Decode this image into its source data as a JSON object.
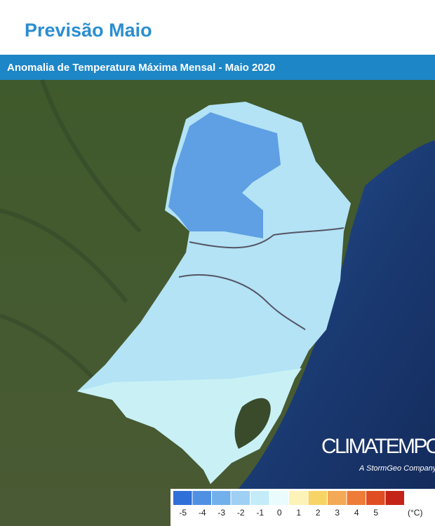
{
  "header": {
    "title": "Previsão Maio",
    "subtitle": "Anomalia de Temperatura Máxima Mensal - Maio 2020"
  },
  "brand": {
    "name": "CLIMATEMPO",
    "tagline": "A StormGeo Company"
  },
  "legend": {
    "labels": [
      -5,
      -4,
      -3,
      -2,
      -1,
      0,
      1,
      2,
      3,
      4,
      5
    ],
    "unit": "(°C)",
    "colors": [
      "#2f6fd8",
      "#4f90e2",
      "#72b0ec",
      "#9dd0f3",
      "#c3ecf8",
      "#e9fbfc",
      "#fdf3b8",
      "#f8d466",
      "#f3a955",
      "#ee7c38",
      "#e04d22",
      "#c42418"
    ]
  }
}
